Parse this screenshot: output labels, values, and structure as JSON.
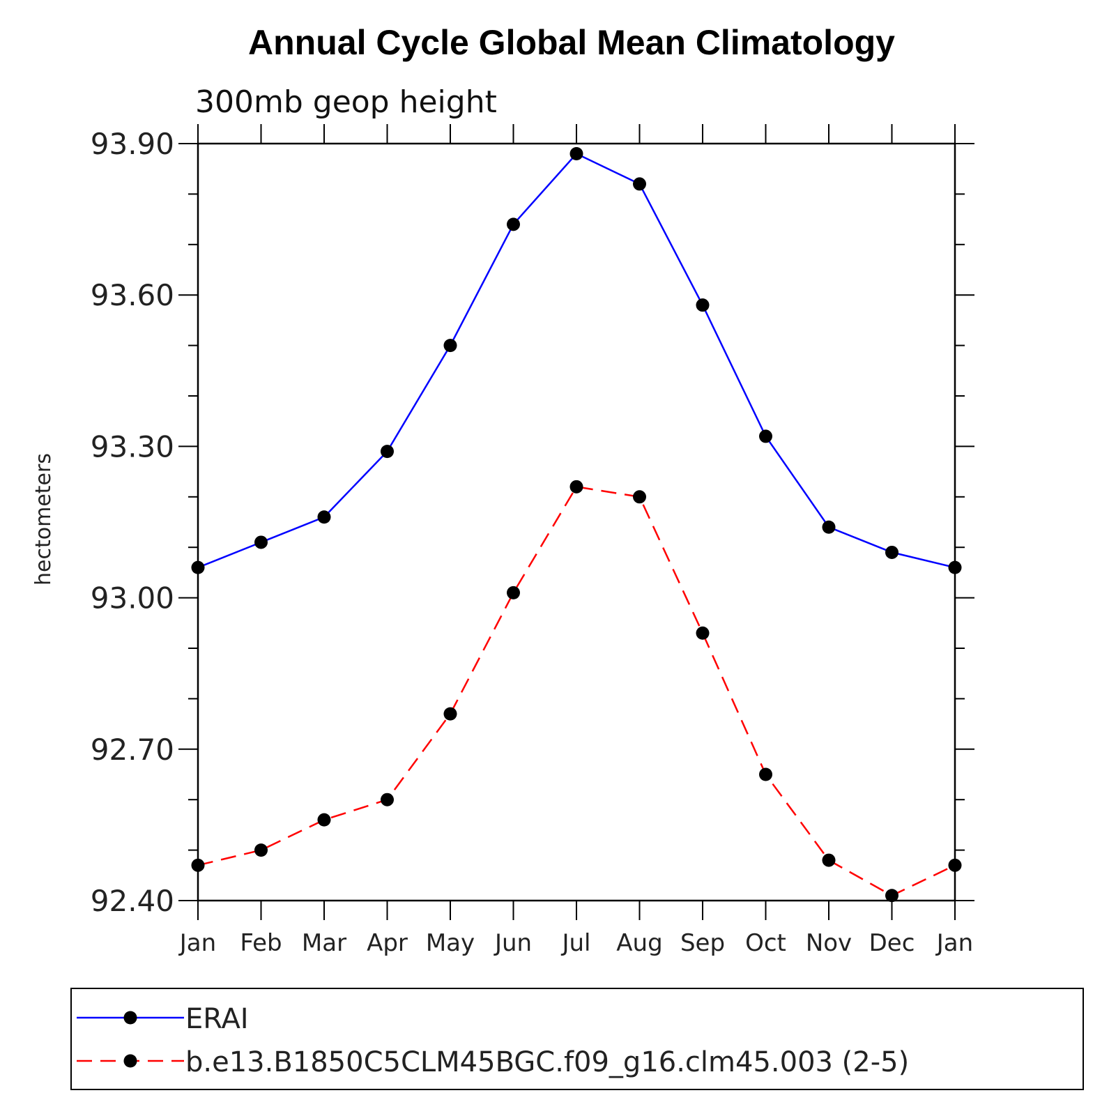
{
  "chart_data": {
    "type": "line",
    "title": "Annual Cycle Global Mean Climatology",
    "subtitle": "300mb geop height",
    "xlabel": "",
    "ylabel": "hectometers",
    "categories": [
      "Jan",
      "Feb",
      "Mar",
      "Apr",
      "May",
      "Jun",
      "Jul",
      "Aug",
      "Sep",
      "Oct",
      "Nov",
      "Dec",
      "Jan"
    ],
    "ylim": [
      92.4,
      93.9
    ],
    "yticks": [
      "92.40",
      "92.70",
      "93.00",
      "93.30",
      "93.60",
      "93.90"
    ],
    "grid": false,
    "legend_position": "bottom",
    "series": [
      {
        "name": "ERAI",
        "color": "#0000ff",
        "line_style": "solid",
        "marker": "filled-circle",
        "values": [
          93.06,
          93.11,
          93.16,
          93.29,
          93.5,
          93.74,
          93.88,
          93.82,
          93.58,
          93.32,
          93.14,
          93.09,
          93.06
        ]
      },
      {
        "name": "b.e13.B1850C5CLM45BGC.f09_g16.clm45.003 (2-5)",
        "color": "#ff0000",
        "line_style": "dashed",
        "marker": "filled-circle",
        "values": [
          92.47,
          92.5,
          92.56,
          92.6,
          92.77,
          93.01,
          93.22,
          93.2,
          92.93,
          92.65,
          92.48,
          92.41,
          92.47
        ]
      }
    ]
  }
}
